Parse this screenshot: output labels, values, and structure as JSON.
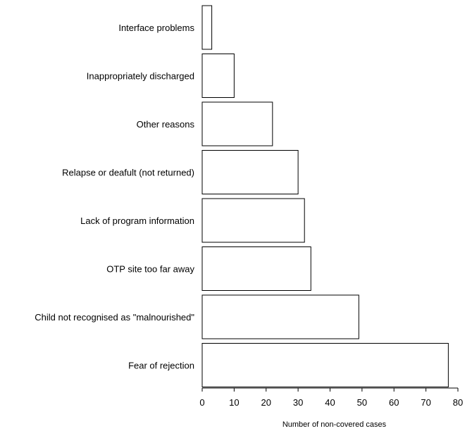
{
  "chart_data": {
    "type": "bar",
    "orientation": "horizontal",
    "categories": [
      "Interface problems",
      "Inappropriately discharged",
      "Other reasons",
      "Relapse or deafult (not returned)",
      "Lack of program information",
      "OTP site too far away",
      "Child not recognised as \"malnourished\"",
      "Fear of rejection"
    ],
    "values": [
      3,
      10,
      22,
      30,
      32,
      34,
      49,
      77
    ],
    "title": "",
    "xlabel": "Number of non-covered cases",
    "ylabel": "",
    "xlim": [
      0,
      80
    ],
    "xticks": [
      "0",
      "10",
      "20",
      "30",
      "40",
      "50",
      "60",
      "70",
      "80"
    ],
    "grid": false,
    "bar_fill": "#ffffff",
    "bar_stroke": "#000000"
  }
}
